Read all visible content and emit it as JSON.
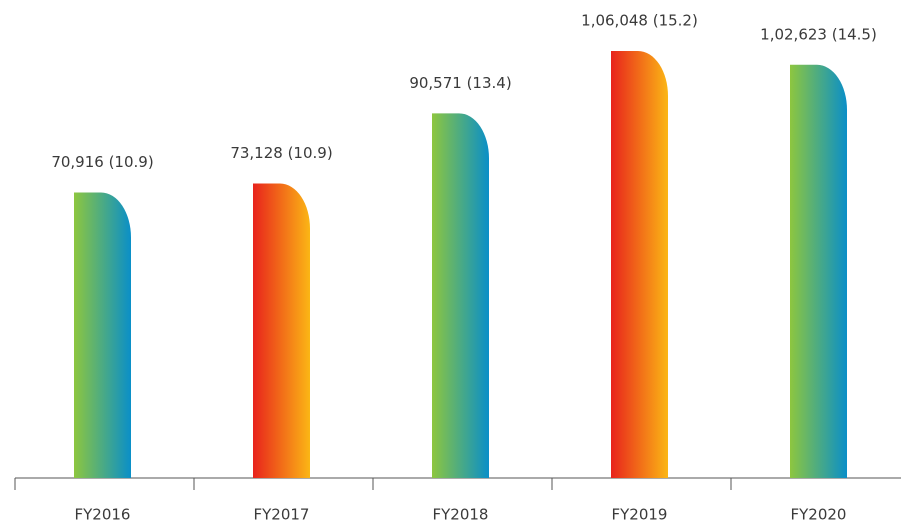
{
  "chart_data": {
    "type": "bar",
    "categories": [
      "FY2016",
      "FY2017",
      "FY2018",
      "FY2019",
      "FY2020"
    ],
    "values": [
      70916,
      73128,
      90571,
      106048,
      102623
    ],
    "value_labels": [
      "70,916 (10.9)",
      "73,128 (10.9)",
      "90,571 (13.4)",
      "1,06,048 (15.2)",
      "1,02,623 (14.5)"
    ],
    "colors": [
      [
        "#8dc63f",
        "#0a8fc8"
      ],
      [
        "#e8231c",
        "#fbb615"
      ],
      [
        "#8dc63f",
        "#0a8fc8"
      ],
      [
        "#e8231c",
        "#fbb615"
      ],
      [
        "#8dc63f",
        "#0a8fc8"
      ]
    ]
  }
}
